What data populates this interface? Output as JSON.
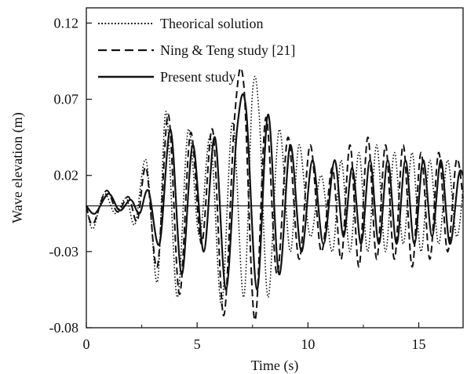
{
  "chart_data": {
    "type": "line",
    "title": "",
    "xlabel": "Time (s)",
    "ylabel": "Wave elevation (m)",
    "xlim": [
      0,
      17
    ],
    "ylim": [
      -0.08,
      0.13
    ],
    "x_ticks": [
      0,
      5,
      10,
      15
    ],
    "y_ticks": [
      -0.08,
      -0.03,
      0.02,
      0.07,
      0.12
    ],
    "x_tick_labels": [
      "0",
      "5",
      "10",
      "15"
    ],
    "y_tick_labels": [
      "-0.08",
      "-0.03",
      "0.02",
      "0.07",
      "0.12"
    ],
    "grid": false,
    "legend_position": "top-left",
    "reference_line_y": 0,
    "series": [
      {
        "name": "Theorical solution",
        "style": "dotted",
        "color": "#111111",
        "points": [
          [
            0,
            0
          ],
          [
            0.3,
            -0.015
          ],
          [
            0.8,
            0.008
          ],
          [
            1.3,
            -0.005
          ],
          [
            1.8,
            0.005
          ],
          [
            2.2,
            -0.012
          ],
          [
            2.7,
            0.03
          ],
          [
            3.2,
            -0.05
          ],
          [
            3.6,
            0.062
          ],
          [
            4.1,
            -0.06
          ],
          [
            4.6,
            0.05
          ],
          [
            5.1,
            -0.02
          ],
          [
            5.6,
            0.045
          ],
          [
            6.1,
            -0.065
          ],
          [
            6.6,
            0.055
          ],
          [
            7.1,
            -0.06
          ],
          [
            7.5,
            0.075
          ],
          [
            7.8,
            0.06
          ],
          [
            8.2,
            -0.06
          ],
          [
            8.7,
            0.05
          ],
          [
            9.2,
            -0.03
          ],
          [
            9.6,
            0.04
          ],
          [
            10.1,
            -0.02
          ],
          [
            10.6,
            0.02
          ],
          [
            11.1,
            -0.03
          ],
          [
            11.5,
            0.03
          ],
          [
            11.9,
            -0.03
          ],
          [
            12.3,
            0.035
          ],
          [
            12.7,
            -0.03
          ],
          [
            13.1,
            0.04
          ],
          [
            13.5,
            -0.03
          ],
          [
            13.9,
            0.035
          ],
          [
            14.3,
            -0.025
          ],
          [
            14.7,
            0.035
          ],
          [
            15.1,
            -0.03
          ],
          [
            15.5,
            0.03
          ],
          [
            15.9,
            -0.025
          ],
          [
            16.3,
            0.03
          ],
          [
            16.7,
            -0.02
          ],
          [
            17,
            0.01
          ]
        ]
      },
      {
        "name": "Ning & Teng study [21]",
        "style": "dashed",
        "color": "#111111",
        "points": [
          [
            0,
            0
          ],
          [
            0.3,
            -0.012
          ],
          [
            0.9,
            0.01
          ],
          [
            1.4,
            -0.004
          ],
          [
            1.9,
            0.006
          ],
          [
            2.3,
            -0.01
          ],
          [
            2.7,
            0.025
          ],
          [
            3.2,
            -0.04
          ],
          [
            3.7,
            0.06
          ],
          [
            4.2,
            -0.058
          ],
          [
            4.7,
            0.048
          ],
          [
            5.2,
            -0.025
          ],
          [
            5.7,
            0.05
          ],
          [
            6.2,
            -0.072
          ],
          [
            6.7,
            0.06
          ],
          [
            7.1,
            0.08
          ],
          [
            7.6,
            -0.075
          ],
          [
            8.1,
            0.058
          ],
          [
            8.6,
            -0.045
          ],
          [
            9.1,
            0.045
          ],
          [
            9.6,
            -0.035
          ],
          [
            10.1,
            0.04
          ],
          [
            10.6,
            -0.03
          ],
          [
            11.1,
            0.025
          ],
          [
            11.5,
            -0.035
          ],
          [
            11.9,
            0.04
          ],
          [
            12.3,
            -0.04
          ],
          [
            12.7,
            0.045
          ],
          [
            13.1,
            -0.035
          ],
          [
            13.5,
            0.04
          ],
          [
            13.9,
            -0.035
          ],
          [
            14.3,
            0.04
          ],
          [
            14.7,
            -0.04
          ],
          [
            15.1,
            0.035
          ],
          [
            15.5,
            -0.035
          ],
          [
            15.9,
            0.035
          ],
          [
            16.3,
            -0.03
          ],
          [
            16.7,
            0.03
          ],
          [
            17,
            0.005
          ]
        ]
      },
      {
        "name": "Present study",
        "style": "solid",
        "color": "#111111",
        "points": [
          [
            0,
            0
          ],
          [
            0.4,
            -0.005
          ],
          [
            1.0,
            0.008
          ],
          [
            1.5,
            -0.003
          ],
          [
            2.0,
            0.004
          ],
          [
            2.4,
            -0.005
          ],
          [
            2.8,
            0.01
          ],
          [
            3.3,
            -0.025
          ],
          [
            3.8,
            0.05
          ],
          [
            4.3,
            -0.045
          ],
          [
            4.8,
            0.04
          ],
          [
            5.3,
            -0.03
          ],
          [
            5.8,
            0.045
          ],
          [
            6.3,
            -0.055
          ],
          [
            6.8,
            0.05
          ],
          [
            7.2,
            0.065
          ],
          [
            7.7,
            -0.055
          ],
          [
            8.2,
            0.06
          ],
          [
            8.7,
            -0.045
          ],
          [
            9.2,
            0.04
          ],
          [
            9.7,
            -0.03
          ],
          [
            10.2,
            0.03
          ],
          [
            10.7,
            -0.025
          ],
          [
            11.2,
            0.03
          ],
          [
            11.6,
            -0.02
          ],
          [
            12.0,
            0.025
          ],
          [
            12.4,
            -0.025
          ],
          [
            12.8,
            0.03
          ],
          [
            13.2,
            -0.025
          ],
          [
            13.6,
            0.03
          ],
          [
            14.0,
            -0.025
          ],
          [
            14.4,
            0.03
          ],
          [
            14.8,
            -0.025
          ],
          [
            15.2,
            0.03
          ],
          [
            15.6,
            -0.02
          ],
          [
            16.0,
            0.03
          ],
          [
            16.4,
            -0.025
          ],
          [
            16.8,
            0.02
          ],
          [
            17,
            0.02
          ]
        ]
      }
    ]
  }
}
